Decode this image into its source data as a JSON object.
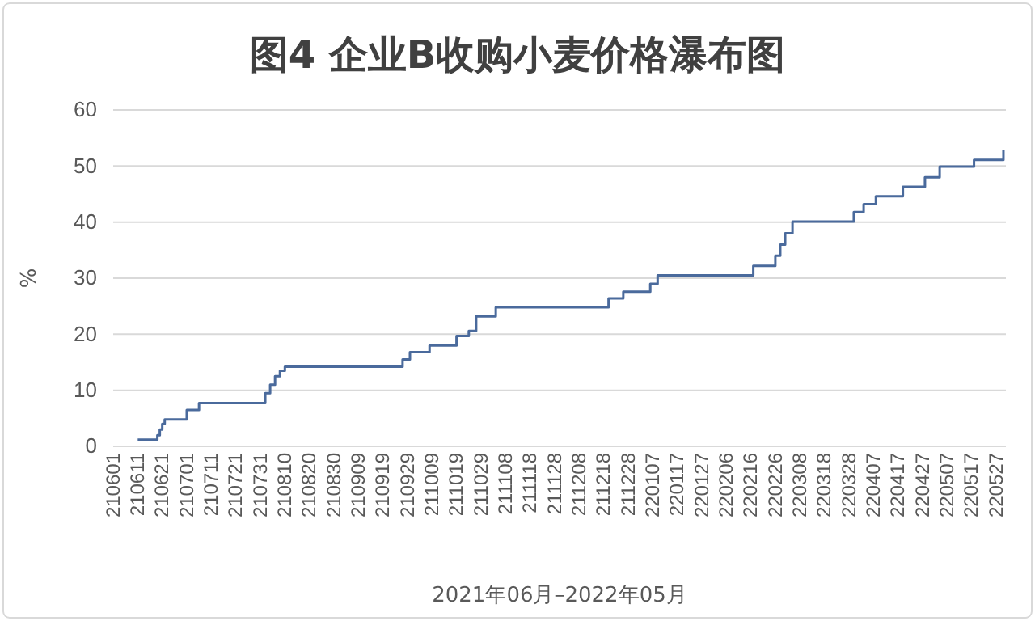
{
  "chart_data": {
    "type": "step",
    "title": "图4 企业B收购小麦价格瀑布图",
    "xlabel": "2021年06月–2022年05月",
    "ylabel": "%",
    "x": [
      "2021-06-11",
      "2021-06-19",
      "2021-06-20",
      "2021-06-21",
      "2021-06-22",
      "2021-07-01",
      "2021-07-06",
      "2021-08-02",
      "2021-08-04",
      "2021-08-06",
      "2021-08-08",
      "2021-08-10",
      "2021-09-27",
      "2021-09-30",
      "2021-10-08",
      "2021-10-19",
      "2021-10-24",
      "2021-10-27",
      "2021-11-04",
      "2021-12-20",
      "2021-12-26",
      "2022-01-06",
      "2022-01-09",
      "2022-02-17",
      "2022-02-26",
      "2022-02-28",
      "2022-03-02",
      "2022-03-05",
      "2022-03-30",
      "2022-04-03",
      "2022-04-08",
      "2022-04-19",
      "2022-04-28",
      "2022-05-04",
      "2022-05-18",
      "2022-05-30"
    ],
    "series": [
      {
        "color": "#4a6a9c",
        "values": [
          1.2,
          2.0,
          3.0,
          4.0,
          4.8,
          6.5,
          7.7,
          9.5,
          11.0,
          12.5,
          13.5,
          14.2,
          15.5,
          16.8,
          18.0,
          19.7,
          20.6,
          23.2,
          24.8,
          26.4,
          27.6,
          29.0,
          30.5,
          32.2,
          34.0,
          36.0,
          38.0,
          40.1,
          41.8,
          43.2,
          44.6,
          46.3,
          48.0,
          49.9,
          51.1,
          52.8
        ]
      }
    ],
    "xlim": [
      "2021-06-01",
      "2022-05-31"
    ],
    "xticks": [
      {
        "value": "2021-06-01",
        "label": "210601"
      },
      {
        "value": "2021-06-11",
        "label": "210611"
      },
      {
        "value": "2021-06-21",
        "label": "210621"
      },
      {
        "value": "2021-07-01",
        "label": "210701"
      },
      {
        "value": "2021-07-11",
        "label": "210711"
      },
      {
        "value": "2021-07-21",
        "label": "210721"
      },
      {
        "value": "2021-07-31",
        "label": "210731"
      },
      {
        "value": "2021-08-10",
        "label": "210810"
      },
      {
        "value": "2021-08-20",
        "label": "210820"
      },
      {
        "value": "2021-08-30",
        "label": "210830"
      },
      {
        "value": "2021-09-09",
        "label": "210909"
      },
      {
        "value": "2021-09-19",
        "label": "210919"
      },
      {
        "value": "2021-09-29",
        "label": "210929"
      },
      {
        "value": "2021-10-09",
        "label": "211009"
      },
      {
        "value": "2021-10-19",
        "label": "211019"
      },
      {
        "value": "2021-10-29",
        "label": "211029"
      },
      {
        "value": "2021-11-08",
        "label": "211108"
      },
      {
        "value": "2021-11-18",
        "label": "211118"
      },
      {
        "value": "2021-11-28",
        "label": "211128"
      },
      {
        "value": "2021-12-08",
        "label": "211208"
      },
      {
        "value": "2021-12-18",
        "label": "211218"
      },
      {
        "value": "2021-12-28",
        "label": "211228"
      },
      {
        "value": "2022-01-07",
        "label": "220107"
      },
      {
        "value": "2022-01-17",
        "label": "220117"
      },
      {
        "value": "2022-01-27",
        "label": "220127"
      },
      {
        "value": "2022-02-06",
        "label": "220206"
      },
      {
        "value": "2022-02-16",
        "label": "220216"
      },
      {
        "value": "2022-02-26",
        "label": "220226"
      },
      {
        "value": "2022-03-08",
        "label": "220308"
      },
      {
        "value": "2022-03-18",
        "label": "220318"
      },
      {
        "value": "2022-03-28",
        "label": "220328"
      },
      {
        "value": "2022-04-07",
        "label": "220407"
      },
      {
        "value": "2022-04-17",
        "label": "220417"
      },
      {
        "value": "2022-04-27",
        "label": "220427"
      },
      {
        "value": "2022-05-07",
        "label": "220507"
      },
      {
        "value": "2022-05-17",
        "label": "220517"
      },
      {
        "value": "2022-05-27",
        "label": "220527"
      }
    ],
    "ylim": [
      0,
      60
    ],
    "yticks": [
      0,
      10,
      20,
      30,
      40,
      50,
      60
    ],
    "grid": "y",
    "line_style": "solid"
  }
}
